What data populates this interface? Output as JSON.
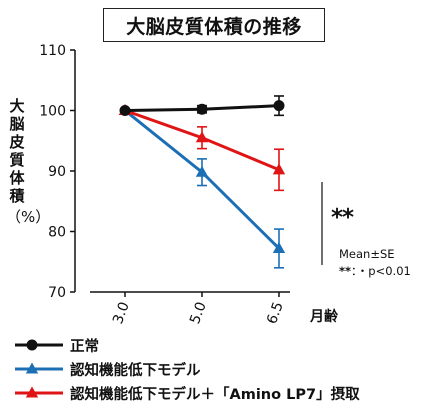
{
  "chart_data": {
    "type": "line",
    "title": "大脳皮質体積の推移",
    "ylabel": "大脳皮質体積",
    "yunit": "（%）",
    "xlabel": "月齢",
    "x": [
      "3.0",
      "5.0",
      "6.5"
    ],
    "ylim": [
      70,
      110
    ],
    "yticks": [
      70,
      80,
      90,
      100,
      110
    ],
    "grid": false,
    "legend_position": "bottom-left",
    "series": [
      {
        "name": "正常",
        "color": "#111111",
        "marker": "circle",
        "values": [
          100,
          100.2,
          100.8
        ],
        "errors": [
          0,
          0.6,
          1.6
        ]
      },
      {
        "name": "認知機能低下モデル",
        "color": "#1c6fb5",
        "marker": "triangle",
        "values": [
          100,
          89.8,
          77.2
        ],
        "errors": [
          0,
          2.2,
          3.2
        ]
      },
      {
        "name": "認知機能低下モデル＋「Amino LP7」摂取",
        "color": "#e01414",
        "marker": "triangle",
        "values": [
          100,
          95.5,
          90.2
        ],
        "errors": [
          0,
          1.8,
          3.4
        ]
      }
    ],
    "annotations": {
      "significance": "**",
      "stats_label": "Mean±SE",
      "pvalue_marker": "**",
      "pvalue_text": "：・p<0.01"
    }
  }
}
